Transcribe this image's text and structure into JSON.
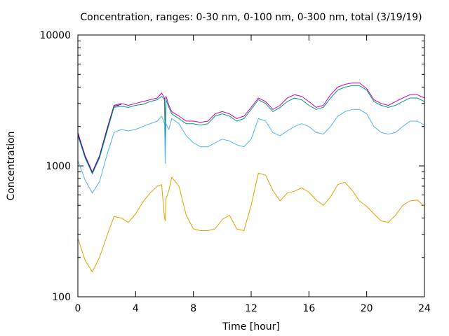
{
  "chart_data": {
    "type": "line",
    "title": "Concentration, ranges: 0-30 nm, 0-100 nm, 0-300 nm, total (3/19/19)",
    "xlabel": "Time [hour]",
    "ylabel": "Concentration",
    "xlim": [
      0,
      24
    ],
    "ylim": [
      100,
      10000
    ],
    "yscale": "log",
    "grid": false,
    "legend": "none",
    "x_ticks": [
      "0",
      "4",
      "8",
      "12",
      "16",
      "20",
      "24"
    ],
    "y_ticks": [
      "100",
      "1000",
      "10000"
    ],
    "series": [
      {
        "color": "#c800c8",
        "x": [
          0,
          0.5,
          1,
          1.5,
          2,
          2.5,
          3,
          3.5,
          4,
          4.5,
          5,
          5.5,
          5.8,
          6,
          6.05,
          6.1,
          6.3,
          6.5,
          7,
          7.5,
          8,
          8.5,
          9,
          9.5,
          10,
          10.5,
          11,
          11.5,
          12,
          12.5,
          13,
          13.5,
          14,
          14.5,
          15,
          15.5,
          16,
          16.5,
          17,
          17.5,
          18,
          18.5,
          19,
          19.5,
          20,
          20.5,
          21,
          21.5,
          22,
          22.5,
          23,
          23.5,
          24
        ],
        "values": [
          1800,
          1200,
          900,
          1200,
          1900,
          2900,
          3000,
          2900,
          3000,
          3100,
          3200,
          3300,
          3600,
          3300,
          1600,
          3400,
          2900,
          2600,
          2400,
          2200,
          2200,
          2150,
          2200,
          2500,
          2600,
          2500,
          2300,
          2400,
          2800,
          3300,
          3100,
          2700,
          2900,
          3300,
          3500,
          3400,
          3100,
          2800,
          2900,
          3500,
          4000,
          4200,
          4300,
          4300,
          3900,
          3200,
          3000,
          2900,
          3100,
          3300,
          3500,
          3500,
          3300
        ]
      },
      {
        "color": "#1a1a8c",
        "x": [
          0,
          0.5,
          1,
          1.5,
          2,
          2.5,
          3
        ],
        "values": [
          1750,
          1180,
          880,
          1180,
          1850,
          2850,
          2950
        ]
      },
      {
        "color": "#009e73",
        "x": [
          0,
          0.5,
          1,
          1.5,
          2,
          2.5,
          3,
          3.5,
          4,
          4.5,
          5,
          5.5,
          5.8,
          6,
          6.05,
          6.1,
          6.3,
          6.5,
          7,
          7.5,
          8,
          8.5,
          9,
          9.5,
          10,
          10.5,
          11,
          11.5,
          12,
          12.5,
          13,
          13.5,
          14,
          14.5,
          15,
          15.5,
          16,
          16.5,
          17,
          17.5,
          18,
          18.5,
          19,
          19.5,
          20,
          20.5,
          21,
          21.5,
          22,
          22.5,
          23,
          23.5,
          24
        ],
        "values": [
          1700,
          1150,
          870,
          1150,
          1800,
          2800,
          2850,
          2800,
          2900,
          2950,
          3100,
          3200,
          3400,
          3200,
          1400,
          3200,
          2800,
          2500,
          2300,
          2100,
          2100,
          2050,
          2100,
          2400,
          2500,
          2400,
          2200,
          2300,
          2700,
          3200,
          3000,
          2600,
          2800,
          3100,
          3300,
          3200,
          2900,
          2700,
          2800,
          3300,
          3800,
          4000,
          4100,
          4100,
          3800,
          3100,
          2900,
          2800,
          2900,
          3100,
          3300,
          3300,
          3100
        ]
      },
      {
        "color": "#56b4e9",
        "x": [
          0,
          0.5,
          1,
          1.5,
          2,
          2.5,
          3,
          3.5,
          4,
          4.5,
          5,
          5.5,
          5.8,
          6,
          6.05,
          6.1,
          6.3,
          6.5,
          7,
          7.5,
          8,
          8.5,
          9,
          9.5,
          10,
          10.5,
          11,
          11.5,
          12,
          12.5,
          13,
          13.5,
          14,
          14.5,
          15,
          15.5,
          16,
          16.5,
          17,
          17.5,
          18,
          18.5,
          19,
          19.5,
          20,
          20.5,
          21,
          21.5,
          22,
          22.5,
          23,
          23.5,
          24
        ],
        "values": [
          1100,
          780,
          620,
          760,
          1200,
          1800,
          1900,
          1850,
          1900,
          2000,
          2100,
          2200,
          2400,
          2100,
          1050,
          2100,
          1900,
          2300,
          2100,
          1700,
          1500,
          1400,
          1400,
          1500,
          1600,
          1550,
          1450,
          1400,
          1600,
          2300,
          2200,
          1800,
          1700,
          1850,
          2000,
          2100,
          2000,
          1800,
          1750,
          2000,
          2400,
          2600,
          2700,
          2700,
          2500,
          2000,
          1800,
          1750,
          1800,
          2000,
          2200,
          2200,
          2050
        ]
      },
      {
        "color": "#e69f00",
        "x": [
          0,
          0.5,
          1,
          1.5,
          2,
          2.5,
          3,
          3.5,
          4,
          4.5,
          5,
          5.5,
          5.8,
          6,
          6.05,
          6.1,
          6.3,
          6.5,
          7,
          7.5,
          8,
          8.5,
          9,
          9.5,
          10,
          10.5,
          11,
          11.5,
          12,
          12.5,
          13,
          13.5,
          14,
          14.5,
          15,
          15.5,
          16,
          16.5,
          17,
          17.5,
          18,
          18.5,
          19,
          19.5,
          20,
          20.5,
          21,
          21.5,
          22,
          22.5,
          23,
          23.5,
          24
        ],
        "values": [
          280,
          190,
          155,
          200,
          290,
          410,
          400,
          370,
          430,
          530,
          620,
          700,
          720,
          400,
          380,
          560,
          650,
          820,
          700,
          420,
          330,
          320,
          320,
          330,
          390,
          420,
          330,
          320,
          500,
          880,
          850,
          650,
          540,
          620,
          640,
          680,
          630,
          550,
          500,
          580,
          720,
          750,
          650,
          540,
          490,
          430,
          380,
          370,
          420,
          500,
          540,
          550,
          490
        ]
      }
    ]
  }
}
